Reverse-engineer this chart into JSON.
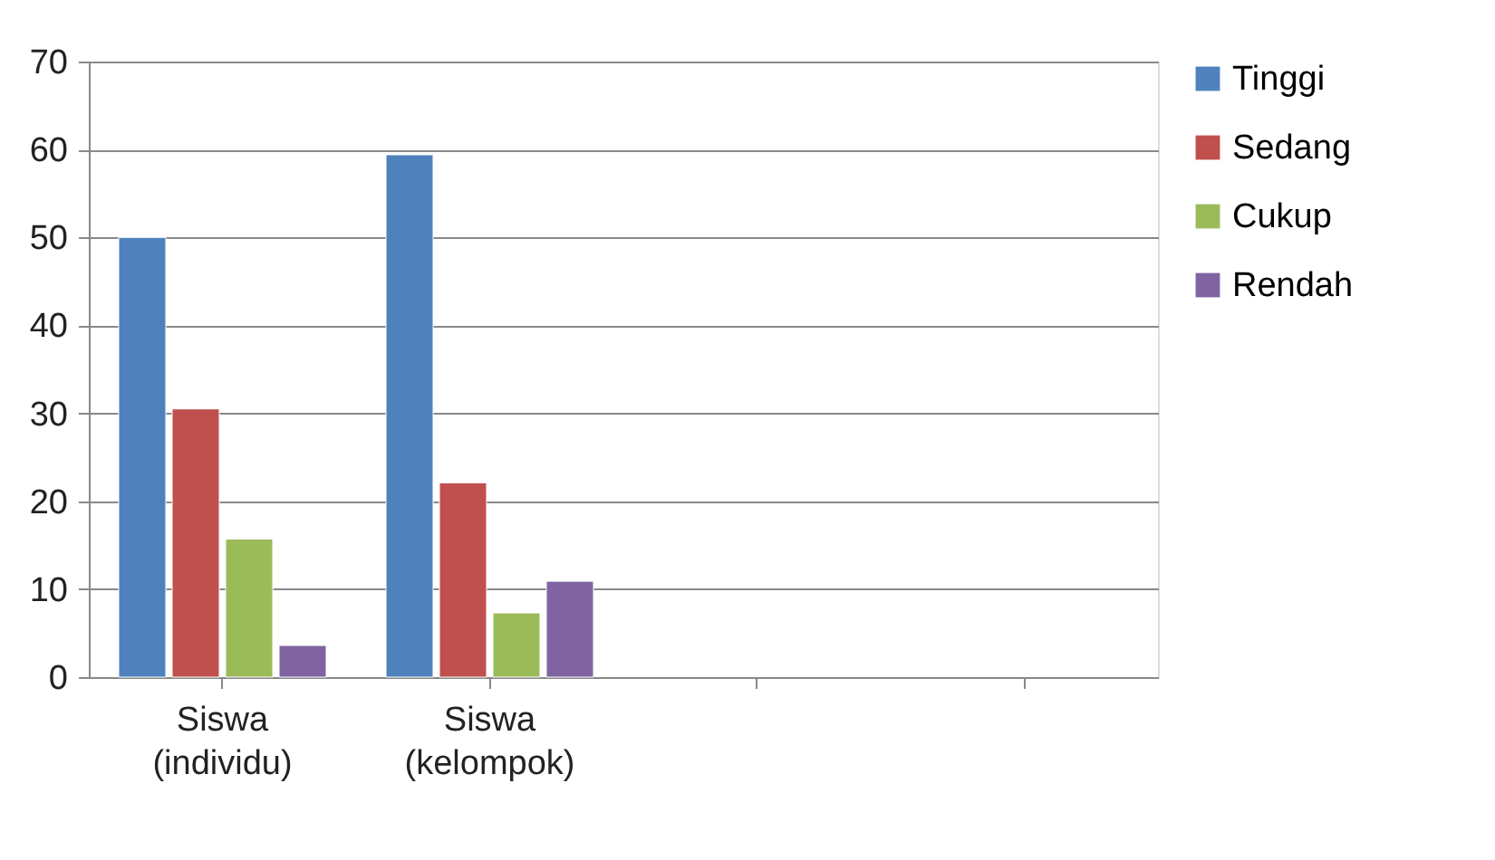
{
  "chart_data": {
    "type": "bar",
    "categories": [
      "Siswa\n(individu)",
      "Siswa\n(kelompok)",
      null,
      null
    ],
    "series": [
      {
        "name": "Tinggi",
        "color": "#4f81bd",
        "values": [
          50,
          59.4,
          null,
          null
        ]
      },
      {
        "name": "Sedang",
        "color": "#c0504d",
        "values": [
          30.5,
          22.1,
          null,
          null
        ]
      },
      {
        "name": "Cukup",
        "color": "#9bbb59",
        "values": [
          15.7,
          7.3,
          null,
          null
        ]
      },
      {
        "name": "Rendah",
        "color": "#8064a2",
        "values": [
          3.6,
          10.9,
          null,
          null
        ]
      }
    ],
    "ylim": [
      0,
      70
    ],
    "yticks": [
      0,
      10,
      20,
      30,
      40,
      50,
      60,
      70
    ],
    "grid": "y",
    "legend": "right"
  }
}
